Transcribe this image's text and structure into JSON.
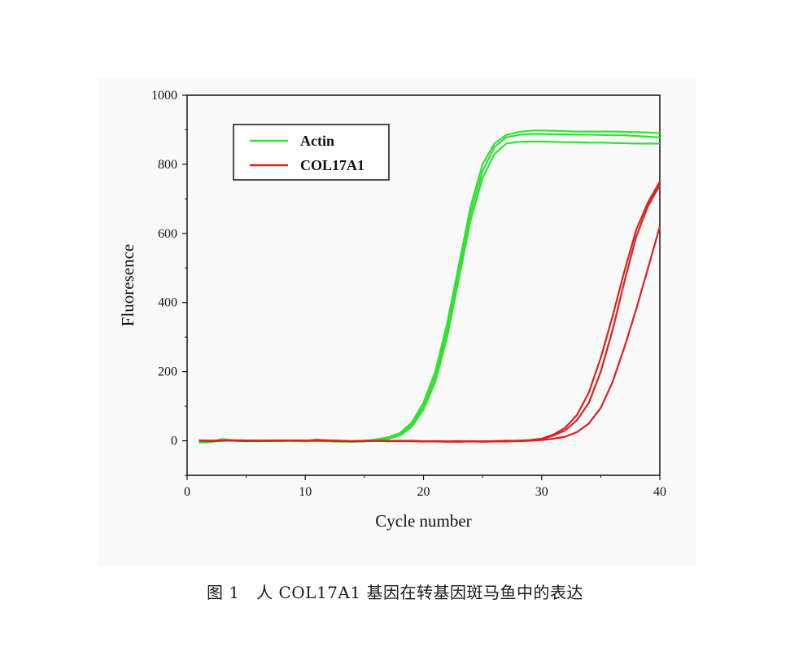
{
  "caption": "图 1　人 COL17A1 基因在转基因斑马鱼中的表达",
  "chart_data": {
    "type": "line",
    "xlabel": "Cycle number",
    "ylabel": "Fluoresence",
    "xlim": [
      0,
      40
    ],
    "ylim": [
      -100,
      1000
    ],
    "x_ticks": [
      "0",
      "10",
      "20",
      "30",
      "40"
    ],
    "y_ticks": [
      "0",
      "200",
      "400",
      "600",
      "800",
      "1000"
    ],
    "legend_position": "top-left",
    "series": [
      {
        "name": "Actin",
        "color": "#33e033",
        "replicates": [
          {
            "x": [
              1,
              2,
              3,
              4,
              5,
              6,
              7,
              8,
              9,
              10,
              11,
              12,
              13,
              14,
              15,
              16,
              17,
              18,
              19,
              20,
              21,
              22,
              23,
              24,
              25,
              26,
              27,
              28,
              29,
              30,
              31,
              32,
              33,
              34,
              35,
              36,
              37,
              38,
              39,
              40
            ],
            "y": [
              -5,
              -4,
              2,
              1,
              0,
              -1,
              0,
              -1,
              0,
              -2,
              0,
              -2,
              -3,
              -3,
              -2,
              2,
              6,
              15,
              40,
              90,
              170,
              300,
              470,
              640,
              760,
              830,
              860,
              865,
              866,
              866,
              865,
              864,
              864,
              863,
              863,
              862,
              861,
              860,
              860,
              860
            ]
          },
          {
            "x": [
              1,
              2,
              3,
              4,
              5,
              6,
              7,
              8,
              9,
              10,
              11,
              12,
              13,
              14,
              15,
              16,
              17,
              18,
              19,
              20,
              21,
              22,
              23,
              24,
              25,
              26,
              27,
              28,
              29,
              30,
              31,
              32,
              33,
              34,
              35,
              36,
              37,
              38,
              39,
              40
            ],
            "y": [
              -3,
              -2,
              5,
              1,
              -1,
              1,
              -1,
              0,
              1,
              -1,
              -1,
              0,
              -1,
              -2,
              0,
              3,
              8,
              18,
              45,
              100,
              185,
              320,
              490,
              660,
              780,
              850,
              878,
              885,
              888,
              888,
              887,
              887,
              886,
              886,
              885,
              884,
              884,
              882,
              880,
              878
            ]
          },
          {
            "x": [
              1,
              2,
              3,
              4,
              5,
              6,
              7,
              8,
              9,
              10,
              11,
              12,
              13,
              14,
              15,
              16,
              17,
              18,
              19,
              20,
              21,
              22,
              23,
              24,
              25,
              26,
              27,
              28,
              29,
              30,
              31,
              32,
              33,
              34,
              35,
              36,
              37,
              38,
              39,
              40
            ],
            "y": [
              -4,
              -3,
              3,
              2,
              1,
              0,
              1,
              1,
              0,
              0,
              -1,
              -1,
              -2,
              -1,
              -1,
              4,
              10,
              22,
              52,
              110,
              200,
              340,
              510,
              680,
              800,
              860,
              885,
              893,
              897,
              898,
              897,
              896,
              895,
              895,
              895,
              895,
              894,
              893,
              892,
              890
            ]
          }
        ]
      },
      {
        "name": "COL17A1",
        "color": "#dd2020",
        "replicates": [
          {
            "x": [
              1,
              2,
              3,
              4,
              5,
              6,
              7,
              8,
              9,
              10,
              11,
              12,
              13,
              14,
              15,
              16,
              17,
              18,
              19,
              20,
              21,
              22,
              23,
              24,
              25,
              26,
              27,
              28,
              29,
              30,
              31,
              32,
              33,
              34,
              35,
              36,
              37,
              38,
              39,
              40
            ],
            "y": [
              0,
              -1,
              0,
              1,
              0,
              -1,
              0,
              0,
              1,
              0,
              3,
              1,
              0,
              -2,
              -1,
              0,
              -1,
              0,
              -1,
              -2,
              -2,
              -3,
              -2,
              -1,
              -2,
              -1,
              -1,
              0,
              1,
              5,
              15,
              30,
              60,
              110,
              200,
              320,
              460,
              590,
              680,
              740
            ]
          },
          {
            "x": [
              1,
              2,
              3,
              4,
              5,
              6,
              7,
              8,
              9,
              10,
              11,
              12,
              13,
              14,
              15,
              16,
              17,
              18,
              19,
              20,
              21,
              22,
              23,
              24,
              25,
              26,
              27,
              28,
              29,
              30,
              31,
              32,
              33,
              34,
              35,
              36,
              37,
              38,
              39,
              40
            ],
            "y": [
              0,
              0,
              1,
              0,
              -1,
              0,
              0,
              1,
              0,
              0,
              2,
              0,
              -1,
              -1,
              0,
              0,
              0,
              -1,
              -1,
              -2,
              -1,
              -2,
              -1,
              -2,
              -2,
              -1,
              0,
              0,
              2,
              6,
              18,
              38,
              75,
              140,
              240,
              360,
              490,
              610,
              690,
              750
            ]
          },
          {
            "x": [
              1,
              2,
              3,
              4,
              5,
              6,
              7,
              8,
              9,
              10,
              11,
              12,
              13,
              14,
              15,
              16,
              17,
              18,
              19,
              20,
              21,
              22,
              23,
              24,
              25,
              26,
              27,
              28,
              29,
              30,
              31,
              32,
              33,
              34,
              35,
              36,
              37,
              38,
              39,
              40
            ],
            "y": [
              1,
              0,
              0,
              1,
              1,
              0,
              0,
              0,
              1,
              0,
              1,
              0,
              0,
              -1,
              -1,
              0,
              -1,
              -1,
              0,
              -1,
              -2,
              -2,
              -3,
              -2,
              -3,
              -2,
              -2,
              -1,
              0,
              2,
              6,
              12,
              25,
              50,
              95,
              170,
              270,
              380,
              500,
              620
            ]
          }
        ]
      }
    ]
  }
}
